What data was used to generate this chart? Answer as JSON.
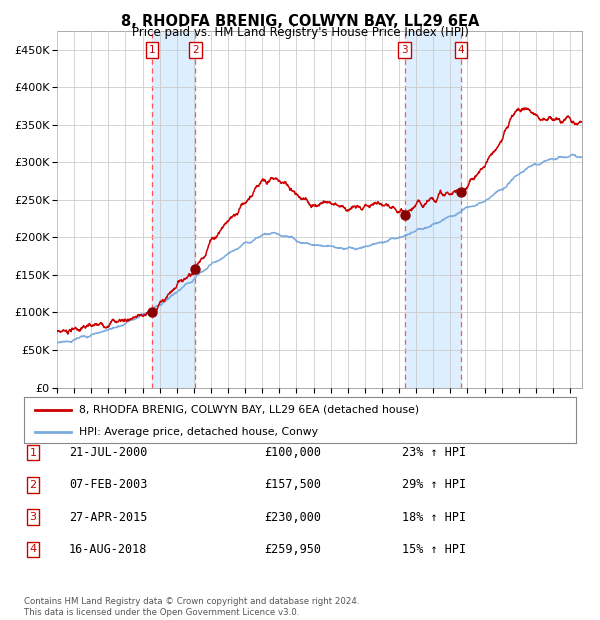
{
  "title": "8, RHODFA BRENIG, COLWYN BAY, LL29 6EA",
  "subtitle": "Price paid vs. HM Land Registry's House Price Index (HPI)",
  "footer": "Contains HM Land Registry data © Crown copyright and database right 2024.\nThis data is licensed under the Open Government Licence v3.0.",
  "legend_line1": "8, RHODFA BRENIG, COLWYN BAY, LL29 6EA (detached house)",
  "legend_line2": "HPI: Average price, detached house, Conwy",
  "transactions": [
    {
      "num": 1,
      "date": "21-JUL-2000",
      "price": 100000,
      "pct": "23%",
      "direction": "↑"
    },
    {
      "num": 2,
      "date": "07-FEB-2003",
      "price": 157500,
      "pct": "29%",
      "direction": "↑"
    },
    {
      "num": 3,
      "date": "27-APR-2015",
      "price": 230000,
      "pct": "18%",
      "direction": "↑"
    },
    {
      "num": 4,
      "date": "16-AUG-2018",
      "price": 259950,
      "pct": "15%",
      "direction": "↑"
    }
  ],
  "transaction_dates_decimal": [
    2000.547,
    2003.096,
    2015.322,
    2018.623
  ],
  "ylim": [
    0,
    475000
  ],
  "yticks": [
    0,
    50000,
    100000,
    150000,
    200000,
    250000,
    300000,
    350000,
    400000,
    450000
  ],
  "ytick_labels": [
    "£0",
    "£50K",
    "£100K",
    "£150K",
    "£200K",
    "£250K",
    "£300K",
    "£350K",
    "£400K",
    "£450K"
  ],
  "xlim_start": 1995.0,
  "xlim_end": 2025.7,
  "background_color": "#ffffff",
  "plot_bg_color": "#ffffff",
  "grid_color": "#cccccc",
  "red_line_color": "#cc0000",
  "blue_line_color": "#7aaadd",
  "shade_color": "#ddeeff",
  "dashed_color": "#ff5555",
  "marker_color": "#880000",
  "label_box_color": "#cc0000",
  "random_seed": 42,
  "anchors_red_t": [
    1995.0,
    1996.5,
    1998.0,
    1999.5,
    2000.547,
    2001.2,
    2002.0,
    2003.096,
    2004.0,
    2005.0,
    2006.0,
    2007.0,
    2007.8,
    2008.8,
    2009.5,
    2010.2,
    2010.8,
    2011.5,
    2012.2,
    2013.0,
    2013.8,
    2014.5,
    2015.322,
    2015.8,
    2016.5,
    2017.2,
    2018.0,
    2018.623,
    2019.2,
    2020.0,
    2020.8,
    2021.5,
    2022.0,
    2022.8,
    2023.5,
    2024.0,
    2024.8,
    2025.3
  ],
  "anchors_red_v": [
    75000,
    79000,
    86000,
    93000,
    100000,
    115000,
    138000,
    157500,
    195000,
    222000,
    248000,
    272000,
    278000,
    265000,
    248000,
    243000,
    248000,
    243000,
    237000,
    242000,
    245000,
    238000,
    230000,
    240000,
    248000,
    255000,
    258000,
    259950,
    275000,
    295000,
    320000,
    358000,
    372000,
    368000,
    358000,
    355000,
    356000,
    352000
  ],
  "anchors_blue_t": [
    1995.0,
    1996.0,
    1997.0,
    1998.0,
    1999.0,
    2000.0,
    2001.0,
    2002.0,
    2003.0,
    2004.0,
    2005.0,
    2006.0,
    2007.0,
    2007.8,
    2008.8,
    2009.5,
    2010.2,
    2011.0,
    2011.8,
    2012.5,
    2013.2,
    2014.0,
    2015.0,
    2016.0,
    2017.0,
    2018.0,
    2019.0,
    2020.0,
    2021.0,
    2022.0,
    2023.0,
    2024.0,
    2025.3
  ],
  "anchors_blue_v": [
    60000,
    64000,
    70000,
    77000,
    85000,
    95000,
    110000,
    128000,
    145000,
    163000,
    178000,
    192000,
    202000,
    205000,
    198000,
    192000,
    190000,
    188000,
    186000,
    185000,
    188000,
    193000,
    200000,
    208000,
    218000,
    228000,
    240000,
    248000,
    265000,
    285000,
    298000,
    305000,
    308000
  ]
}
